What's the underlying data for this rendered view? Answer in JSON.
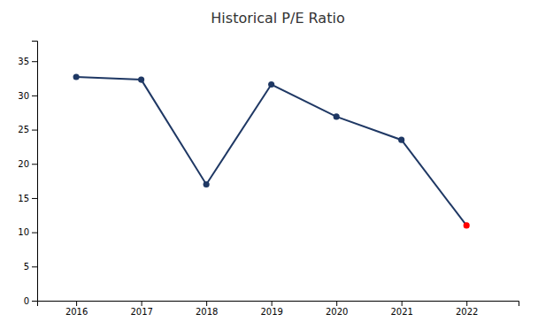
{
  "chart_data": {
    "type": "line",
    "title": "Historical P/E Ratio",
    "x": [
      2016,
      2017,
      2018,
      2019,
      2020,
      2021,
      2022
    ],
    "values": [
      32.7,
      32.3,
      17.0,
      31.6,
      26.9,
      23.5,
      11.0
    ],
    "color": "#1F3864",
    "colors": [
      "#1F3864",
      "#1F3864",
      "#1F3864",
      "#1F3864",
      "#1F3864",
      "#1F3864",
      "#FF0000"
    ],
    "marker": "circle",
    "xlim": [
      2015.4,
      2022.8
    ],
    "xticks": [
      2016,
      2017,
      2018,
      2019,
      2020,
      2021,
      2022
    ],
    "ylim": [
      0,
      38
    ],
    "yticks": [
      0,
      5,
      10,
      15,
      20,
      25,
      30,
      35
    ],
    "grid": false
  }
}
